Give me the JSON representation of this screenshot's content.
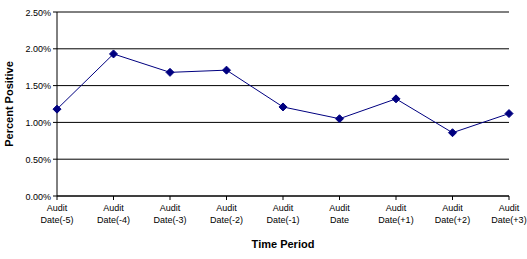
{
  "chart_data": {
    "type": "line",
    "x_label": "Time Period",
    "y_label": "Percent Positive",
    "categories": [
      "Audit Date(-5)",
      "Audit Date(-4)",
      "Audit Date(-3)",
      "Audit Date(-2)",
      "Audit Date(-1)",
      "Audit Date",
      "Audit Date(+1)",
      "Audit Date(+2)",
      "Audit Date(+3)"
    ],
    "values": [
      1.18,
      1.93,
      1.68,
      1.71,
      1.21,
      1.05,
      1.32,
      0.86,
      1.12
    ],
    "color": "#000080",
    "marker": "diamond",
    "ylim": [
      0,
      2.5
    ],
    "yticks": [
      {
        "value": 0,
        "label": "0.00%"
      },
      {
        "value": 0.5,
        "label": "0.50%"
      },
      {
        "value": 1,
        "label": "1.00%"
      },
      {
        "value": 1.5,
        "label": "1.50%"
      },
      {
        "value": 2,
        "label": "2.00%"
      },
      {
        "value": 2.5,
        "label": "2.50%"
      }
    ],
    "grid": true
  }
}
